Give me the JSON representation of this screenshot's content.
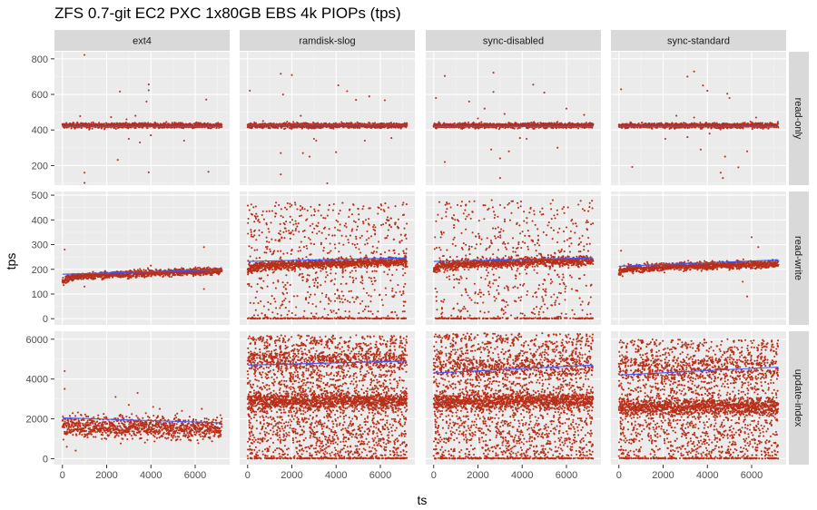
{
  "chart_data": {
    "type": "scatter",
    "title": "ZFS 0.7-git EC2 PXC 1x80GB EBS 4k PIOPs (tps)",
    "xlabel": "ts",
    "ylabel": "tps",
    "columns": [
      "ext4",
      "ramdisk-slog",
      "sync-disabled",
      "sync-standard"
    ],
    "rows": [
      "read-only",
      "read-write",
      "update-index"
    ],
    "x_range": [
      0,
      7200
    ],
    "x_ticks": [
      0,
      2000,
      4000,
      6000
    ],
    "x_tick_labels": [
      "0",
      "2000",
      "4000",
      "6000"
    ],
    "colors": {
      "points": "#b8301a",
      "smooth": "#3f57ff",
      "panel": "#ebebeb",
      "strip": "#d9d9d9"
    },
    "facet_rows": [
      {
        "name": "read-only",
        "ylim": [
          90,
          840
        ],
        "y_ticks": [
          200,
          400,
          600,
          800
        ],
        "y_tick_labels": [
          "200",
          "400",
          "600",
          "800"
        ],
        "panels": [
          {
            "column": "ext4",
            "band_center": 425,
            "band_spread": 12,
            "smooth": [
              [
                0,
                420
              ],
              [
                7200,
                420
              ]
            ],
            "outliers": [
              [
                1000,
                822
              ],
              [
                2600,
                616
              ],
              [
                3900,
                656
              ],
              [
                3900,
                623
              ],
              [
                6500,
                571
              ],
              [
                3800,
                560
              ],
              [
                2200,
                472
              ],
              [
                800,
                478
              ],
              [
                2500,
                232
              ],
              [
                1000,
                160
              ],
              [
                3900,
                162
              ],
              [
                6600,
                165
              ],
              [
                1000,
                102
              ],
              [
                3500,
                330
              ],
              [
                3000,
                350
              ],
              [
                4000,
                370
              ],
              [
                5500,
                340
              ],
              [
                4700,
                445
              ],
              [
                2900,
                460
              ],
              [
                3300,
                480
              ]
            ]
          },
          {
            "column": "ramdisk-slog",
            "band_center": 425,
            "band_spread": 12,
            "smooth": [
              [
                0,
                428
              ],
              [
                7200,
                428
              ]
            ],
            "outliers": [
              [
                1500,
                716
              ],
              [
                2000,
                709
              ],
              [
                4100,
                651
              ],
              [
                4500,
                618
              ],
              [
                1600,
                599
              ],
              [
                4900,
                569
              ],
              [
                6200,
                567
              ],
              [
                5500,
                589
              ],
              [
                100,
                621
              ],
              [
                3000,
                350
              ],
              [
                1500,
                270
              ],
              [
                2500,
                270
              ],
              [
                1500,
                150
              ],
              [
                4000,
                275
              ],
              [
                2800,
                250
              ],
              [
                3100,
                340
              ],
              [
                3600,
                100
              ],
              [
                5300,
                340
              ],
              [
                6500,
                355
              ],
              [
                700,
                450
              ],
              [
                2400,
                480
              ]
            ]
          },
          {
            "column": "sync-disabled",
            "band_center": 425,
            "band_spread": 12,
            "smooth": [
              [
                0,
                420
              ],
              [
                7200,
                420
              ]
            ],
            "outliers": [
              [
                500,
                704
              ],
              [
                2700,
                722
              ],
              [
                4500,
                655
              ],
              [
                2700,
                614
              ],
              [
                1600,
                560
              ],
              [
                2300,
                520
              ],
              [
                100,
                580
              ],
              [
                500,
                220
              ],
              [
                3000,
                130
              ],
              [
                3000,
                240
              ],
              [
                3400,
                280
              ],
              [
                3900,
                355
              ],
              [
                2600,
                290
              ],
              [
                5000,
                610
              ],
              [
                6000,
                520
              ],
              [
                4200,
                350
              ],
              [
                5600,
                300
              ],
              [
                2000,
                465
              ],
              [
                3200,
                490
              ],
              [
                6800,
                485
              ]
            ]
          },
          {
            "column": "sync-standard",
            "band_center": 425,
            "band_spread": 12,
            "smooth": [
              [
                0,
                420
              ],
              [
                7200,
                420
              ]
            ],
            "outliers": [
              [
                3400,
                729
              ],
              [
                3100,
                700
              ],
              [
                3800,
                650
              ],
              [
                4000,
                620
              ],
              [
                4900,
                604
              ],
              [
                100,
                629
              ],
              [
                5000,
                580
              ],
              [
                600,
                192
              ],
              [
                4600,
                160
              ],
              [
                5400,
                190
              ],
              [
                4700,
                130
              ],
              [
                3100,
                360
              ],
              [
                3700,
                290
              ],
              [
                4800,
                250
              ],
              [
                5800,
                280
              ],
              [
                2100,
                350
              ],
              [
                4100,
                380
              ],
              [
                6200,
                470
              ],
              [
                2600,
                480
              ],
              [
                3400,
                470
              ]
            ]
          }
        ]
      },
      {
        "name": "read-write",
        "ylim": [
          -25,
          515
        ],
        "y_ticks": [
          0,
          100,
          200,
          300,
          400,
          500
        ],
        "y_tick_labels": [
          "0",
          "100",
          "200",
          "300",
          "400",
          "500"
        ],
        "panels": [
          {
            "column": "ext4",
            "band_start": 160,
            "band_end": 193,
            "band_spread": 12,
            "smooth": [
              [
                0,
                180
              ],
              [
                7200,
                198
              ]
            ],
            "outliers": [
              [
                100,
                280
              ],
              [
                6400,
                290
              ],
              [
                6400,
                120
              ],
              [
                1000,
                130
              ],
              [
                4000,
                215
              ]
            ]
          },
          {
            "column": "ramdisk-slog",
            "band_start": 205,
            "band_end": 232,
            "band_spread": 15,
            "smooth": [
              [
                0,
                232
              ],
              [
                7200,
                246
              ]
            ],
            "scatter_range": [
              0,
              470
            ],
            "scatter_count": 700,
            "zero_line": true
          },
          {
            "column": "sync-disabled",
            "band_start": 210,
            "band_end": 236,
            "band_spread": 15,
            "smooth": [
              [
                0,
                232
              ],
              [
                7200,
                246
              ]
            ],
            "scatter_range": [
              0,
              480
            ],
            "scatter_count": 550,
            "zero_line": true
          },
          {
            "column": "sync-standard",
            "band_start": 195,
            "band_end": 222,
            "band_spread": 13,
            "smooth": [
              [
                0,
                212
              ],
              [
                7200,
                238
              ]
            ],
            "outliers": [
              [
                100,
                275
              ],
              [
                5800,
                90
              ],
              [
                6000,
                330
              ],
              [
                6300,
                290
              ],
              [
                5600,
                150
              ]
            ]
          }
        ]
      },
      {
        "name": "update-index",
        "ylim": [
          -300,
          6400
        ],
        "y_ticks": [
          0,
          2000,
          4000,
          6000
        ],
        "y_tick_labels": [
          "0",
          "2000",
          "4000",
          "6000"
        ],
        "panels": [
          {
            "column": "ext4",
            "band_start": 1700,
            "band_end": 1500,
            "band_spread": 450,
            "smooth": [
              [
                0,
                2050
              ],
              [
                7200,
                1800
              ]
            ],
            "outliers": [
              [
                100,
                4400
              ],
              [
                100,
                3500
              ],
              [
                2400,
                3100
              ],
              [
                3000,
                2700
              ],
              [
                4100,
                2600
              ],
              [
                4400,
                2500
              ],
              [
                5400,
                2400
              ],
              [
                6300,
                2500
              ],
              [
                200,
                600
              ],
              [
                600,
                400
              ],
              [
                3400,
                3300
              ]
            ]
          },
          {
            "column": "ramdisk-slog",
            "band_start": 2900,
            "band_end": 2900,
            "band_spread": 350,
            "smooth": [
              [
                0,
                4700
              ],
              [
                7200,
                4900
              ]
            ],
            "scatter_range": [
              0,
              6200
            ],
            "scatter_count": 2200,
            "upper_band": [
              4600,
              5300
            ],
            "zero_line": true
          },
          {
            "column": "sync-disabled",
            "band_start": 2900,
            "band_end": 2900,
            "band_spread": 350,
            "smooth": [
              [
                0,
                4300
              ],
              [
                7200,
                4700
              ]
            ],
            "scatter_range": [
              0,
              6300
            ],
            "scatter_count": 1900,
            "upper_band": [
              4200,
              5000
            ],
            "zero_line": true
          },
          {
            "column": "sync-standard",
            "band_start": 2600,
            "band_end": 2600,
            "band_spread": 350,
            "smooth": [
              [
                0,
                4200
              ],
              [
                7200,
                4600
              ]
            ],
            "scatter_range": [
              0,
              6000
            ],
            "scatter_count": 1700,
            "upper_band": [
              4000,
              5000
            ],
            "zero_line": true
          }
        ]
      }
    ]
  }
}
